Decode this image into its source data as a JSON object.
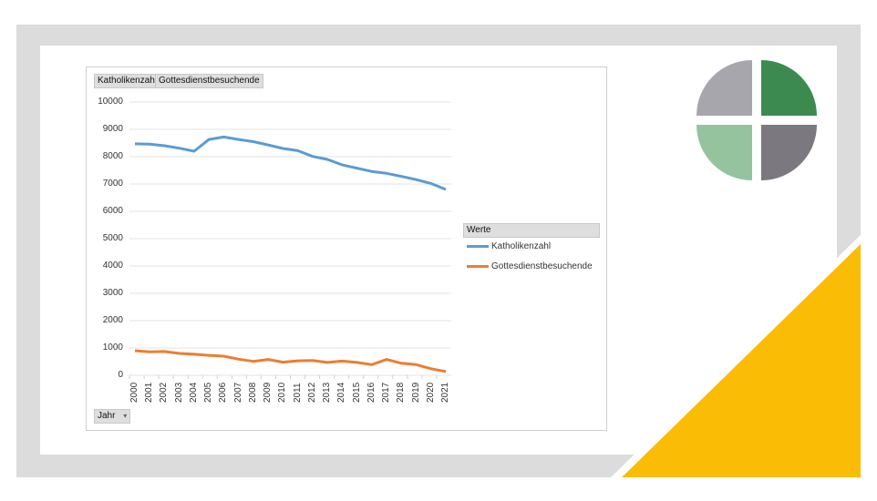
{
  "chart_data": {
    "type": "line",
    "title": "",
    "xlabel": "",
    "ylabel": "",
    "categories": [
      "2000",
      "2001",
      "2002",
      "2003",
      "2004",
      "2005",
      "2006",
      "2007",
      "2008",
      "2009",
      "2010",
      "2011",
      "2012",
      "2013",
      "2014",
      "2015",
      "2016",
      "2017",
      "2018",
      "2019",
      "2020",
      "2021"
    ],
    "series": [
      {
        "name": "Katholikenzahl",
        "color": "#5b9bd5",
        "values": [
          8470,
          8460,
          8400,
          8310,
          8200,
          8630,
          8720,
          8630,
          8550,
          8430,
          8300,
          8220,
          8010,
          7900,
          7700,
          7580,
          7460,
          7390,
          7280,
          7160,
          7020,
          6800
        ]
      },
      {
        "name": "Gottesdienstbesuchende",
        "color": "#ed7d31",
        "values": [
          900,
          860,
          870,
          800,
          770,
          730,
          700,
          590,
          510,
          580,
          480,
          530,
          540,
          470,
          520,
          470,
          390,
          580,
          440,
          390,
          240,
          140
        ]
      }
    ],
    "ylim": [
      0,
      10000
    ],
    "yticks": [
      "10000",
      "9000",
      "8000",
      "7000",
      "6000",
      "5000",
      "4000",
      "3000",
      "2000",
      "1000",
      "0"
    ],
    "grid": true,
    "legend_position": "right"
  },
  "pivot": {
    "value_buttons": [
      "Katholikenzahl",
      "Gottesdienstbesuchende"
    ],
    "legend_title": "Werte",
    "axis_field": "Jahr",
    "axis_field_arrow": "▾"
  },
  "colors": {
    "frame": "#dcdcdc",
    "accent_yellow": "#fbbc05",
    "logo_dark_green": "#3c8a50",
    "logo_light_green": "#95c39d",
    "logo_gray": "#a7a6ad",
    "logo_dark_gray": "#7b797f"
  }
}
